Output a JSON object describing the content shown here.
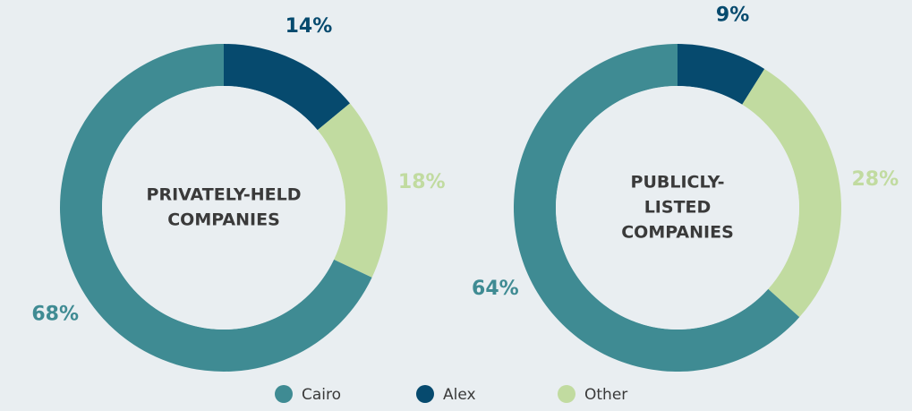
{
  "chart_data": [
    {
      "type": "donut",
      "center_label": [
        "PRIVATELY-HELD",
        "COMPANIES"
      ],
      "categories": [
        "Cairo",
        "Alex",
        "Other"
      ],
      "values": [
        68,
        14,
        18
      ],
      "value_labels": [
        "68%",
        "14%",
        "18%"
      ],
      "colors": [
        "#3f8b93",
        "#064a6e",
        "#c1dba0"
      ]
    },
    {
      "type": "donut",
      "center_label": [
        "PUBLICLY-",
        "LISTED",
        "COMPANIES"
      ],
      "categories": [
        "Cairo",
        "Alex",
        "Other"
      ],
      "values": [
        64,
        9,
        28
      ],
      "value_labels": [
        "64%",
        "9%",
        "28%"
      ],
      "colors": [
        "#3f8b93",
        "#064a6e",
        "#c1dba0"
      ]
    }
  ]
}
